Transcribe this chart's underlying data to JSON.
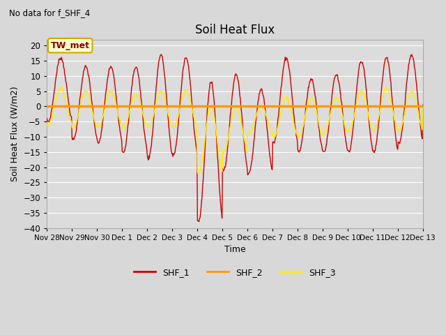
{
  "title": "Soil Heat Flux",
  "subtitle": "No data for f_SHF_4",
  "ylabel": "Soil Heat Flux (W/m2)",
  "xlabel": "Time",
  "annotation": "TW_met",
  "ylim": [
    -40,
    22
  ],
  "yticks": [
    -40,
    -35,
    -30,
    -25,
    -20,
    -15,
    -10,
    -5,
    0,
    5,
    10,
    15,
    20
  ],
  "shf1_color": "#cc0000",
  "shf2_color": "#ff9900",
  "shf3_color": "#ffee00",
  "legend_entries": [
    "SHF_1",
    "SHF_2",
    "SHF_3"
  ],
  "xtick_labels": [
    "Nov 28",
    "Nov 29",
    "Nov 30",
    "Dec 1",
    "Dec 2",
    "Dec 3",
    "Dec 4",
    "Dec 5",
    "Dec 6",
    "Dec 7",
    "Dec 8",
    "Dec 9",
    "Dec 10",
    "Dec 11",
    "Dec 12",
    "Dec 13"
  ],
  "n_days": 15,
  "shf1_peaks": [
    16,
    13,
    13,
    13,
    17,
    16,
    8,
    10.5,
    5.5,
    16,
    9,
    10.5,
    15,
    16,
    17
  ],
  "shf1_troughs": [
    -5,
    -11,
    -12,
    -15,
    -17,
    -16,
    -38,
    -21,
    -22,
    -12,
    -15,
    -15,
    -15,
    -15,
    -12
  ],
  "shf3_peaks": [
    6,
    5,
    5,
    4,
    5,
    5,
    0,
    0,
    0,
    3,
    3,
    3,
    5,
    6,
    5
  ],
  "shf3_troughs": [
    -6,
    -7,
    -7,
    -7,
    -7,
    -7,
    -22,
    -15,
    -9,
    -10,
    -10,
    -9,
    -8,
    -8,
    -8
  ],
  "shf1_peak_phase": 0.55,
  "shf3_peak_phase": 0.55,
  "fig_bg": "#d8d8d8",
  "plot_bg": "#dcdcdc",
  "grid_color": "#ffffff",
  "figsize": [
    6.4,
    4.8
  ],
  "dpi": 100
}
